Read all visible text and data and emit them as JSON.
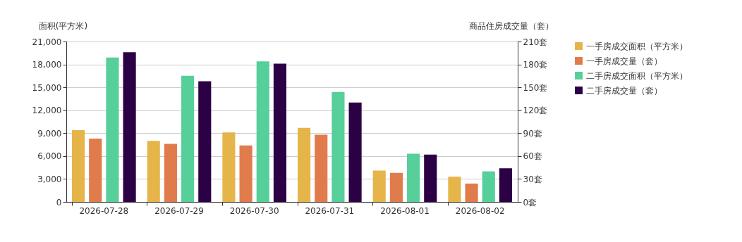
{
  "chart_data": {
    "type": "bar",
    "ylabel": "面积(平方米)",
    "y2label": "商品住房成交量（套）",
    "categories": [
      "2026-07-28",
      "2026-07-29",
      "2026-07-30",
      "2026-07-31",
      "2026-08-01",
      "2026-08-02"
    ],
    "series": [
      {
        "name": "一手房成交面积（平方米）",
        "color": "#e5b54a",
        "values": [
          9400,
          8000,
          9100,
          9700,
          4100,
          3300
        ]
      },
      {
        "name": "一手房成交量（套）",
        "color": "#e07b4c",
        "axis": "y2",
        "values": [
          83,
          76,
          74,
          88,
          38,
          24
        ]
      },
      {
        "name": "二手房成交面积（平方米）",
        "color": "#56cf9a",
        "values": [
          18900,
          16500,
          18400,
          14400,
          6300,
          4000
        ]
      },
      {
        "name": "二手房成交量（套）",
        "color": "#2b0044",
        "axis": "y2",
        "values": [
          196,
          158,
          181,
          130,
          62,
          44
        ]
      }
    ],
    "ylim": [
      0,
      21000
    ],
    "yticks": [
      {
        "value": 0,
        "label": "0"
      },
      {
        "value": 3000,
        "label": "3,000"
      },
      {
        "value": 6000,
        "label": "6,000"
      },
      {
        "value": 9000,
        "label": "9,000"
      },
      {
        "value": 12000,
        "label": "12,000"
      },
      {
        "value": 15000,
        "label": "15,000"
      },
      {
        "value": 18000,
        "label": "18,000"
      },
      {
        "value": 21000,
        "label": "21,000"
      }
    ],
    "y2lim": [
      0,
      210
    ],
    "y2ticks": [
      {
        "value": 0,
        "label": "0套"
      },
      {
        "value": 30,
        "label": "30套"
      },
      {
        "value": 60,
        "label": "60套"
      },
      {
        "value": 90,
        "label": "90套"
      },
      {
        "value": 120,
        "label": "120套"
      },
      {
        "value": 150,
        "label": "150套"
      },
      {
        "value": 180,
        "label": "180套"
      },
      {
        "value": 210,
        "label": "210套"
      }
    ],
    "grid": "y",
    "legend": "right"
  }
}
